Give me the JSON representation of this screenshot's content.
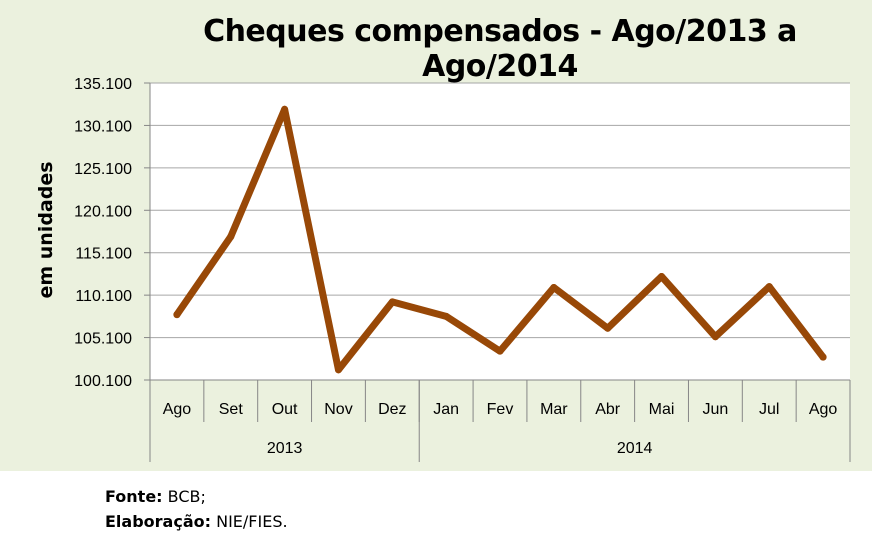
{
  "chart_data": {
    "type": "line",
    "title": "Cheques compensados - Ago/2013 a Ago/2014",
    "ylabel": "em unidades",
    "ylim": [
      100100,
      135100
    ],
    "yticks": [
      "100.100",
      "105.100",
      "110.100",
      "115.100",
      "120.100",
      "125.100",
      "130.100",
      "135.100"
    ],
    "ytick_values": [
      100100,
      105100,
      110100,
      115100,
      120100,
      125100,
      130100,
      135100
    ],
    "categories": [
      "Ago",
      "Set",
      "Out",
      "Nov",
      "Dez",
      "Jan",
      "Fev",
      "Mar",
      "Abr",
      "Mai",
      "Jun",
      "Jul",
      "Ago"
    ],
    "groups": [
      {
        "label": "2013",
        "count": 5
      },
      {
        "label": "2014",
        "count": 8
      }
    ],
    "series": [
      {
        "color": "#984807",
        "values": [
          107800,
          117000,
          132000,
          101300,
          109300,
          107600,
          103500,
          111000,
          106200,
          112300,
          105200,
          111100,
          102800
        ]
      }
    ],
    "grid": true
  },
  "footer": {
    "source_label": "Fonte:",
    "source_value": "BCB;",
    "author_label": "Elaboração:",
    "author_value": "NIE/FIES."
  }
}
